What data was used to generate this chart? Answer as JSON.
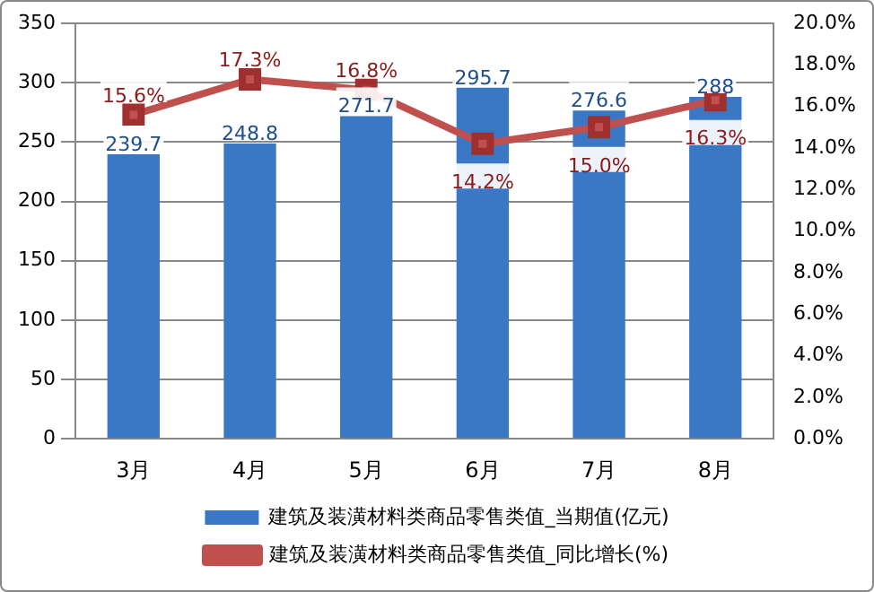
{
  "chart_data": {
    "type": "bar",
    "categories": [
      "3月",
      "4月",
      "5月",
      "6月",
      "7月",
      "8月"
    ],
    "series": [
      {
        "name": "建筑及装潢材料类商品零售类值_当期值(亿元)",
        "color": "#3a78c6",
        "values": [
          239.7,
          248.8,
          271.7,
          295.7,
          276.6,
          288
        ],
        "value_labels": [
          "239.7",
          "248.8",
          "271.7",
          "295.7",
          "276.6",
          "288"
        ]
      },
      {
        "name": "建筑及装潢材料类商品零售类值_同比增长(%)",
        "type": "line",
        "axis": "y2",
        "color": "#c0504d",
        "values": [
          15.6,
          17.3,
          16.8,
          14.2,
          15.0,
          16.3
        ],
        "value_labels": [
          "15.6%",
          "17.3%",
          "16.8%",
          "14.2%",
          "15.0%",
          "16.3%"
        ]
      }
    ],
    "ylim": [
      0,
      350
    ],
    "yticks": [
      0,
      50,
      100,
      150,
      200,
      250,
      300,
      350
    ],
    "y2lim": [
      0,
      20
    ],
    "y2ticks": [
      {
        "value": 0,
        "label": "0.0%"
      },
      {
        "value": 2,
        "label": "2.0%"
      },
      {
        "value": 4,
        "label": "4.0%"
      },
      {
        "value": 6,
        "label": "6.0%"
      },
      {
        "value": 8,
        "label": "8.0%"
      },
      {
        "value": 10,
        "label": "10.0%"
      },
      {
        "value": 12,
        "label": "12.0%"
      },
      {
        "value": 14,
        "label": "14.0%"
      },
      {
        "value": 16,
        "label": "16.0%"
      },
      {
        "value": 18,
        "label": "18.0%"
      },
      {
        "value": 20,
        "label": "20.0%"
      }
    ],
    "grid": "y",
    "legend": "bottom",
    "marker": "square",
    "line_style": "solid"
  }
}
